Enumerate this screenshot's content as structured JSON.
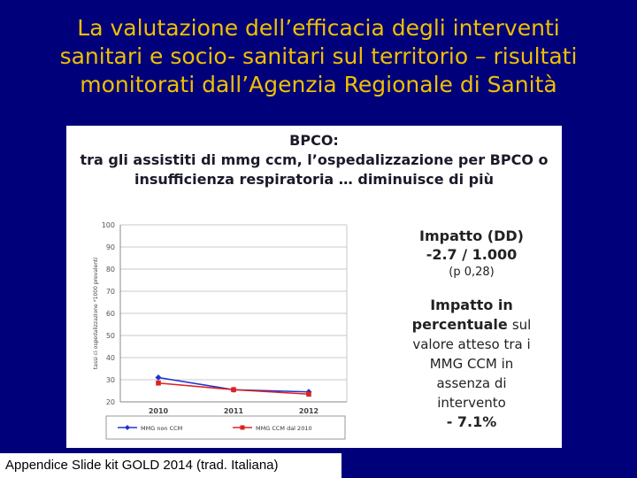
{
  "slide": {
    "title_lines": [
      "La valutazione dell’efficacia degli interventi",
      "sanitari e socio- sanitari sul territorio – risultati",
      "monitorati dall’Agenzia Regionale di Sanità"
    ],
    "footer": "Appendice Slide kit GOLD 2014 (trad. Italiana)"
  },
  "panel": {
    "heading_lines": [
      "BPCO:",
      "tra gli assistiti di mmg ccm, l’ospedalizzazione per BPCO o",
      "insufficienza respiratoria … diminuisce di più"
    ],
    "impact_title": "Impatto (DD)",
    "impact_value": "-2.7 / 1.000",
    "impact_p": "(p 0,28)",
    "pct_title_lines": [
      "Impatto in",
      "percentuale"
    ],
    "pct_text_1": "sul",
    "pct_text_lines": [
      "valore atteso tra i",
      "MMG CCM in",
      "assenza di",
      "intervento"
    ],
    "pct_value": "- 7.1%"
  },
  "chart_data": {
    "type": "line",
    "x": [
      "2010",
      "2011",
      "2012"
    ],
    "ylabel": "tassi ci ospedalizzazione *1000 prevalenti",
    "ylim": [
      20,
      100
    ],
    "yticks": [
      "20",
      "30",
      "40",
      "50",
      "60",
      "70",
      "80",
      "90",
      "100"
    ],
    "grid": true,
    "legend_position": "bottom",
    "series": [
      {
        "name": "MMG non CCM",
        "color": "#2233cc",
        "marker": "diamond",
        "values": [
          31,
          25.5,
          24.5
        ]
      },
      {
        "name": "MMG CCM dal 2010",
        "color": "#dd2222",
        "marker": "square",
        "values": [
          28.5,
          25.5,
          23.5
        ]
      }
    ]
  }
}
